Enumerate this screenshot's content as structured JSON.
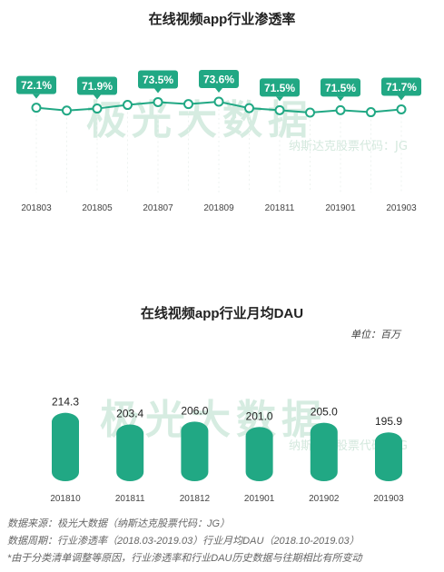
{
  "watermark": {
    "brand": "极光大数据",
    "sub": "纳斯达克股票代码：JG"
  },
  "charts": {
    "penetration": {
      "title": "在线视频app行业渗透率"
    },
    "dau": {
      "title": "在线视频app行业月均DAU",
      "unit": "单位：百万"
    }
  },
  "chart_data": [
    {
      "type": "line",
      "title": "在线视频app行业渗透率",
      "x": [
        "201803",
        "201804",
        "201805",
        "201806",
        "201807",
        "201808",
        "201809",
        "201810",
        "201811",
        "201812",
        "201901",
        "201902",
        "201903"
      ],
      "x_tick_labels": [
        "201803",
        "201805",
        "201807",
        "201809",
        "201811",
        "201901",
        "201903"
      ],
      "series": [
        {
          "values": [
            72.1,
            71.4,
            71.9,
            72.8,
            73.5,
            73.0,
            73.6,
            72.0,
            71.5,
            70.9,
            71.5,
            71.0,
            71.7
          ],
          "data_labels": [
            "72.1%",
            null,
            "71.9%",
            null,
            "73.5%",
            null,
            "73.6%",
            null,
            "71.5%",
            null,
            "71.5%",
            null,
            "71.7%"
          ]
        }
      ],
      "color": "#21a884",
      "grid": false,
      "legend": "none"
    },
    {
      "type": "bar",
      "title": "在线视频app行业月均DAU",
      "categories": [
        "201810",
        "201811",
        "201812",
        "201901",
        "201902",
        "201903"
      ],
      "values": [
        214.3,
        203.4,
        206.0,
        201.0,
        205.0,
        195.9
      ],
      "data_labels": [
        "214.3",
        "203.4",
        "206.0",
        "201.0",
        "205.0",
        "195.9"
      ],
      "unit": "单位：百万",
      "color": "#21a884",
      "ylim": [
        150,
        220
      ],
      "grid": false,
      "legend": "none"
    }
  ],
  "footer": {
    "source": "数据来源：极光大数据（纳斯达克股票代码：JG）",
    "period": "数据周期：行业渗透率（2018.03-2019.03）行业月均DAU（2018.10-2019.03）",
    "note": "*由于分类清单调整等原因，行业渗透率和行业DAU历史数据与往期相比有所变动"
  }
}
